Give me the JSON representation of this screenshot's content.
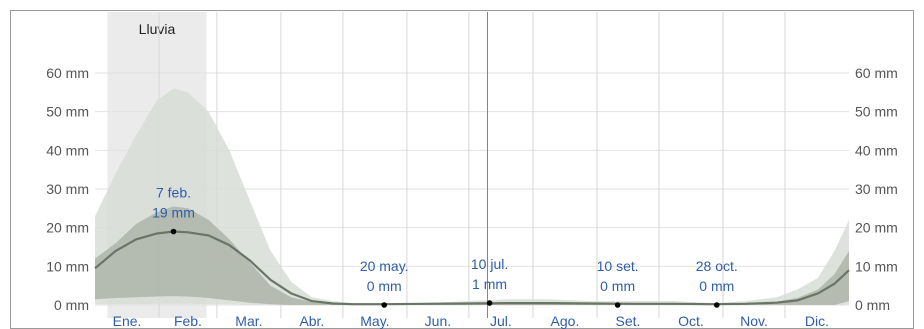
{
  "chart_data": {
    "type": "area",
    "y_ticks": [
      "0 mm",
      "10 mm",
      "20 mm",
      "30 mm",
      "40 mm",
      "50 mm",
      "60 mm"
    ],
    "ylim": [
      0,
      65
    ],
    "months": [
      "Ene.",
      "Feb.",
      "Mar.",
      "Abr.",
      "May.",
      "Jun.",
      "Jul.",
      "Ago.",
      "Set.",
      "Oct.",
      "Nov.",
      "Dic."
    ],
    "season": {
      "label": "lluvia",
      "start_day": 6,
      "end_day": 54
    },
    "current_day": 190,
    "series": [
      {
        "role": "outer_band",
        "x": [
          0,
          10,
          20,
          30,
          38,
          45,
          55,
          65,
          75,
          85,
          95,
          105,
          115,
          125,
          140,
          160,
          180,
          200,
          220,
          240,
          260,
          280,
          300,
          315,
          330,
          340,
          350,
          358,
          365
        ],
        "upper": [
          23,
          34,
          44,
          53,
          56,
          55,
          50,
          40,
          27,
          14,
          6,
          2,
          1,
          0.5,
          0.5,
          0.5,
          1,
          1.5,
          1.5,
          1,
          1,
          1,
          0.5,
          1,
          2,
          4,
          7,
          14,
          22
        ],
        "lower": [
          0.2,
          0.2,
          0.2,
          0.3,
          0.3,
          0.3,
          0.2,
          0.2,
          0.1,
          0.1,
          0,
          0,
          0,
          0,
          0,
          0,
          0,
          0,
          0,
          0,
          0,
          0,
          0,
          0,
          0,
          0,
          0,
          0,
          0.2
        ]
      },
      {
        "role": "inner_band",
        "x": [
          0,
          10,
          20,
          30,
          38,
          45,
          55,
          65,
          75,
          85,
          95,
          105,
          115,
          125,
          140,
          160,
          180,
          200,
          220,
          240,
          260,
          280,
          300,
          315,
          330,
          340,
          350,
          358,
          365
        ],
        "upper": [
          12,
          16,
          21,
          24,
          25.5,
          25,
          22,
          17,
          11,
          5,
          2,
          0.8,
          0.4,
          0.2,
          0.2,
          0.3,
          0.4,
          0.5,
          0.5,
          0.4,
          0.3,
          0.3,
          0.2,
          0.4,
          0.9,
          1.8,
          4,
          8,
          14
        ],
        "lower": [
          1.5,
          1.8,
          2,
          2.2,
          2.3,
          2.2,
          1.8,
          1.2,
          0.6,
          0.2,
          0,
          0,
          0,
          0,
          0,
          0,
          0,
          0,
          0,
          0,
          0,
          0,
          0,
          0,
          0,
          0,
          0,
          0,
          1
        ]
      },
      {
        "role": "median",
        "x": [
          0,
          10,
          20,
          30,
          38,
          45,
          55,
          65,
          75,
          85,
          95,
          105,
          115,
          125,
          140,
          160,
          180,
          200,
          220,
          240,
          260,
          280,
          300,
          315,
          330,
          340,
          350,
          358,
          365
        ],
        "values": [
          9.5,
          14,
          17,
          18.5,
          19,
          18.8,
          18,
          15.5,
          11.5,
          6.5,
          3,
          1,
          0.4,
          0.2,
          0.2,
          0.3,
          0.4,
          0.5,
          0.5,
          0.4,
          0.3,
          0.3,
          0.2,
          0.3,
          0.6,
          1.2,
          3,
          5.5,
          9
        ]
      }
    ],
    "annotations": [
      {
        "day": 38,
        "value": 19,
        "date": "7 feb.",
        "amount": "19 mm"
      },
      {
        "day": 140,
        "value": 0,
        "date": "20 may.",
        "amount": "0 mm"
      },
      {
        "day": 191,
        "value": 0.5,
        "date": "10 jul.",
        "amount": "1 mm"
      },
      {
        "day": 253,
        "value": 0,
        "date": "10 set.",
        "amount": "0 mm"
      },
      {
        "day": 301,
        "value": 0,
        "date": "28 oct.",
        "amount": "0 mm"
      }
    ],
    "grid": true,
    "colors": {
      "season_band": "#ebebeb",
      "outer_band": "#d8ddd7",
      "inner_band": "#aab2a6",
      "median": "#6a7567",
      "grid": "#e2e2e2",
      "month_line": "#d6d6d6",
      "current_day": "#e35d4c",
      "text_blue": "#2f5ea8",
      "axis_text": "#555555"
    }
  }
}
